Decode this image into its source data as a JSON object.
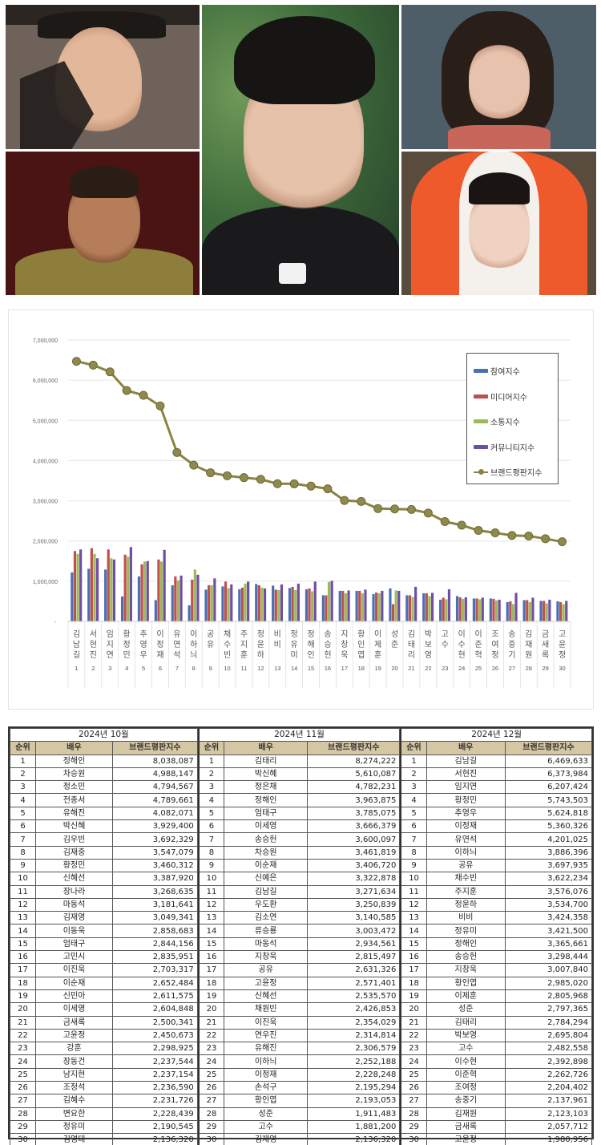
{
  "collage": {
    "photos": [
      {
        "id": "photo-1",
        "desc": "actor in traditional hat with black veil"
      },
      {
        "id": "photo-2",
        "desc": "smiling actor in olive jacket on dark red background"
      },
      {
        "id": "photo-3",
        "desc": "actor in priest collar, green background (center)"
      },
      {
        "id": "photo-4",
        "desc": "actress with shoulder-length hair, grey background"
      },
      {
        "id": "photo-5",
        "desc": "actress in orange hooded hanbok"
      }
    ]
  },
  "chart_data": {
    "type": "bar+line",
    "title": "",
    "xlabel": "",
    "ylabel": "",
    "ylim": [
      0,
      7000000
    ],
    "yticks": [
      "-",
      "1,000,000",
      "2,000,000",
      "3,000,000",
      "4,000,000",
      "5,000,000",
      "6,000,000",
      "7,000,000"
    ],
    "grid": true,
    "legend_position": "upper-right",
    "categories": [
      "김남길",
      "서현진",
      "임지연",
      "황정민",
      "추영우",
      "이정재",
      "유연석",
      "이하늬",
      "공유",
      "채수빈",
      "주지훈",
      "정윤하",
      "비비",
      "정유미",
      "정해인",
      "송승헌",
      "지창욱",
      "황인엽",
      "이제훈",
      "성준",
      "김태리",
      "박보영",
      "고수",
      "이수현",
      "이준혁",
      "조여정",
      "송중기",
      "김재원",
      "금새록",
      "고윤정"
    ],
    "ranks": [
      1,
      2,
      3,
      4,
      5,
      6,
      7,
      8,
      9,
      10,
      11,
      12,
      13,
      14,
      15,
      16,
      17,
      18,
      19,
      20,
      21,
      22,
      23,
      24,
      25,
      26,
      27,
      28,
      29,
      30
    ],
    "series": [
      {
        "name": "참여지수",
        "type": "bar",
        "color": "#4a6fb5",
        "values": [
          1220000,
          1310000,
          1290000,
          620000,
          1120000,
          530000,
          900000,
          400000,
          790000,
          870000,
          800000,
          930000,
          890000,
          830000,
          800000,
          650000,
          760000,
          760000,
          680000,
          820000,
          650000,
          700000,
          540000,
          630000,
          570000,
          570000,
          480000,
          530000,
          510000,
          500000
        ]
      },
      {
        "name": "미디어지수",
        "type": "bar",
        "color": "#c0504d",
        "values": [
          1750000,
          1820000,
          1790000,
          1660000,
          1420000,
          1540000,
          1120000,
          1040000,
          900000,
          990000,
          840000,
          900000,
          790000,
          860000,
          820000,
          650000,
          760000,
          760000,
          720000,
          430000,
          650000,
          700000,
          590000,
          600000,
          570000,
          560000,
          500000,
          530000,
          510000,
          480000
        ]
      },
      {
        "name": "소통지수",
        "type": "bar",
        "color": "#9bbb59",
        "values": [
          1680000,
          1680000,
          1570000,
          1610000,
          1490000,
          1490000,
          1020000,
          1290000,
          900000,
          830000,
          940000,
          840000,
          780000,
          780000,
          750000,
          980000,
          700000,
          700000,
          700000,
          770000,
          610000,
          630000,
          550000,
          560000,
          550000,
          520000,
          430000,
          480000,
          450000,
          430000
        ]
      },
      {
        "name": "커뮤니티지수",
        "type": "bar",
        "color": "#6f4ea6",
        "values": [
          1790000,
          1570000,
          1540000,
          1850000,
          1500000,
          1780000,
          1140000,
          1160000,
          1070000,
          920000,
          990000,
          820000,
          920000,
          940000,
          990000,
          1010000,
          770000,
          790000,
          760000,
          760000,
          860000,
          710000,
          800000,
          600000,
          590000,
          540000,
          710000,
          590000,
          540000,
          510000
        ]
      },
      {
        "name": "브랜드평판지수",
        "type": "line",
        "color": "#8a8442",
        "values": [
          6469633,
          6373984,
          6207424,
          5743503,
          5624818,
          5360326,
          4201025,
          3886396,
          3697935,
          3622234,
          3576076,
          3534700,
          3424358,
          3421500,
          3365661,
          3298444,
          3007840,
          2985020,
          2805968,
          2797365,
          2784294,
          2695804,
          2482558,
          2392898,
          2262726,
          2204402,
          2137961,
          2123103,
          2057712,
          1980956
        ]
      }
    ]
  },
  "tables": {
    "header": {
      "rank": "순위",
      "actor": "배우",
      "score": "브랜드평판지수"
    },
    "months": [
      {
        "title": "2024년 10월",
        "rows": [
          [
            "1",
            "정해인",
            "8,038,087"
          ],
          [
            "2",
            "차승원",
            "4,988,147"
          ],
          [
            "3",
            "정소민",
            "4,794,567"
          ],
          [
            "4",
            "전종서",
            "4,789,661"
          ],
          [
            "5",
            "유해진",
            "4,082,071"
          ],
          [
            "6",
            "박신혜",
            "3,929,400"
          ],
          [
            "7",
            "김우빈",
            "3,692,329"
          ],
          [
            "8",
            "김재중",
            "3,547,079"
          ],
          [
            "9",
            "황정민",
            "3,460,312"
          ],
          [
            "10",
            "신혜선",
            "3,387,920"
          ],
          [
            "11",
            "장나라",
            "3,268,635"
          ],
          [
            "12",
            "마동석",
            "3,181,641"
          ],
          [
            "13",
            "김재영",
            "3,049,341"
          ],
          [
            "14",
            "이동욱",
            "2,858,683"
          ],
          [
            "15",
            "엄태구",
            "2,844,156"
          ],
          [
            "16",
            "고민시",
            "2,835,951"
          ],
          [
            "17",
            "이진욱",
            "2,703,317"
          ],
          [
            "18",
            "이순재",
            "2,652,484"
          ],
          [
            "19",
            "신민아",
            "2,611,575"
          ],
          [
            "20",
            "이세영",
            "2,604,848"
          ],
          [
            "21",
            "금새록",
            "2,500,341"
          ],
          [
            "22",
            "고윤정",
            "2,450,673"
          ],
          [
            "23",
            "강훈",
            "2,298,925"
          ],
          [
            "24",
            "장동건",
            "2,237,544"
          ],
          [
            "25",
            "남지현",
            "2,237,154"
          ],
          [
            "26",
            "조정석",
            "2,236,590"
          ],
          [
            "27",
            "김혜수",
            "2,231,726"
          ],
          [
            "28",
            "변요한",
            "2,228,439"
          ],
          [
            "29",
            "정유미",
            "2,190,545"
          ],
          [
            "30",
            "김영대",
            "2,136,320"
          ]
        ]
      },
      {
        "title": "2024년 11월",
        "rows": [
          [
            "1",
            "김태리",
            "8,274,222"
          ],
          [
            "2",
            "박신혜",
            "5,610,087"
          ],
          [
            "3",
            "정은채",
            "4,782,231"
          ],
          [
            "4",
            "정해인",
            "3,963,875"
          ],
          [
            "5",
            "엄태구",
            "3,785,075"
          ],
          [
            "6",
            "이세영",
            "3,666,379"
          ],
          [
            "7",
            "송승헌",
            "3,600,097"
          ],
          [
            "8",
            "차승원",
            "3,461,819"
          ],
          [
            "9",
            "이순재",
            "3,406,720"
          ],
          [
            "10",
            "신예은",
            "3,322,878"
          ],
          [
            "11",
            "김남길",
            "3,271,634"
          ],
          [
            "12",
            "우도환",
            "3,250,839"
          ],
          [
            "13",
            "김소연",
            "3,140,585"
          ],
          [
            "14",
            "류승룡",
            "3,003,472"
          ],
          [
            "15",
            "마동석",
            "2,934,561"
          ],
          [
            "16",
            "지창욱",
            "2,815,497"
          ],
          [
            "17",
            "공유",
            "2,631,326"
          ],
          [
            "18",
            "고윤정",
            "2,571,401"
          ],
          [
            "19",
            "신혜선",
            "2,535,570"
          ],
          [
            "20",
            "채원빈",
            "2,426,853"
          ],
          [
            "21",
            "이진욱",
            "2,354,029"
          ],
          [
            "22",
            "연우진",
            "2,314,814"
          ],
          [
            "23",
            "유해진",
            "2,306,579"
          ],
          [
            "24",
            "이하늬",
            "2,252,188"
          ],
          [
            "25",
            "이정재",
            "2,228,248"
          ],
          [
            "26",
            "손석구",
            "2,195,294"
          ],
          [
            "27",
            "황인엽",
            "2,193,053"
          ],
          [
            "28",
            "성준",
            "1,911,483"
          ],
          [
            "29",
            "고수",
            "1,881,200"
          ],
          [
            "30",
            "김재영",
            "2,136,320"
          ]
        ]
      },
      {
        "title": "2024년 12월",
        "rows": [
          [
            "1",
            "김남길",
            "6,469,633"
          ],
          [
            "2",
            "서현진",
            "6,373,984"
          ],
          [
            "3",
            "임지연",
            "6,207,424"
          ],
          [
            "4",
            "황정민",
            "5,743,503"
          ],
          [
            "5",
            "추영우",
            "5,624,818"
          ],
          [
            "6",
            "이정재",
            "5,360,326"
          ],
          [
            "7",
            "유연석",
            "4,201,025"
          ],
          [
            "8",
            "이하늬",
            "3,886,396"
          ],
          [
            "9",
            "공유",
            "3,697,935"
          ],
          [
            "10",
            "채수빈",
            "3,622,234"
          ],
          [
            "11",
            "주지훈",
            "3,576,076"
          ],
          [
            "12",
            "정윤하",
            "3,534,700"
          ],
          [
            "13",
            "비비",
            "3,424,358"
          ],
          [
            "14",
            "정유미",
            "3,421,500"
          ],
          [
            "15",
            "정해인",
            "3,365,661"
          ],
          [
            "16",
            "송승헌",
            "3,298,444"
          ],
          [
            "17",
            "지창욱",
            "3,007,840"
          ],
          [
            "18",
            "황인엽",
            "2,985,020"
          ],
          [
            "19",
            "이제훈",
            "2,805,968"
          ],
          [
            "20",
            "성준",
            "2,797,365"
          ],
          [
            "21",
            "김태리",
            "2,784,294"
          ],
          [
            "22",
            "박보영",
            "2,695,804"
          ],
          [
            "23",
            "고수",
            "2,482,558"
          ],
          [
            "24",
            "이수현",
            "2,392,898"
          ],
          [
            "25",
            "이준혁",
            "2,262,726"
          ],
          [
            "26",
            "조여정",
            "2,204,402"
          ],
          [
            "27",
            "송중기",
            "2,137,961"
          ],
          [
            "28",
            "김재원",
            "2,123,103"
          ],
          [
            "29",
            "금새록",
            "2,057,712"
          ],
          [
            "30",
            "고윤정",
            "1,980,956"
          ]
        ]
      }
    ]
  },
  "colors": {
    "table_header_bg": "#d6c7a4",
    "line": "#8a8442",
    "grid": "#e6e6e6"
  }
}
